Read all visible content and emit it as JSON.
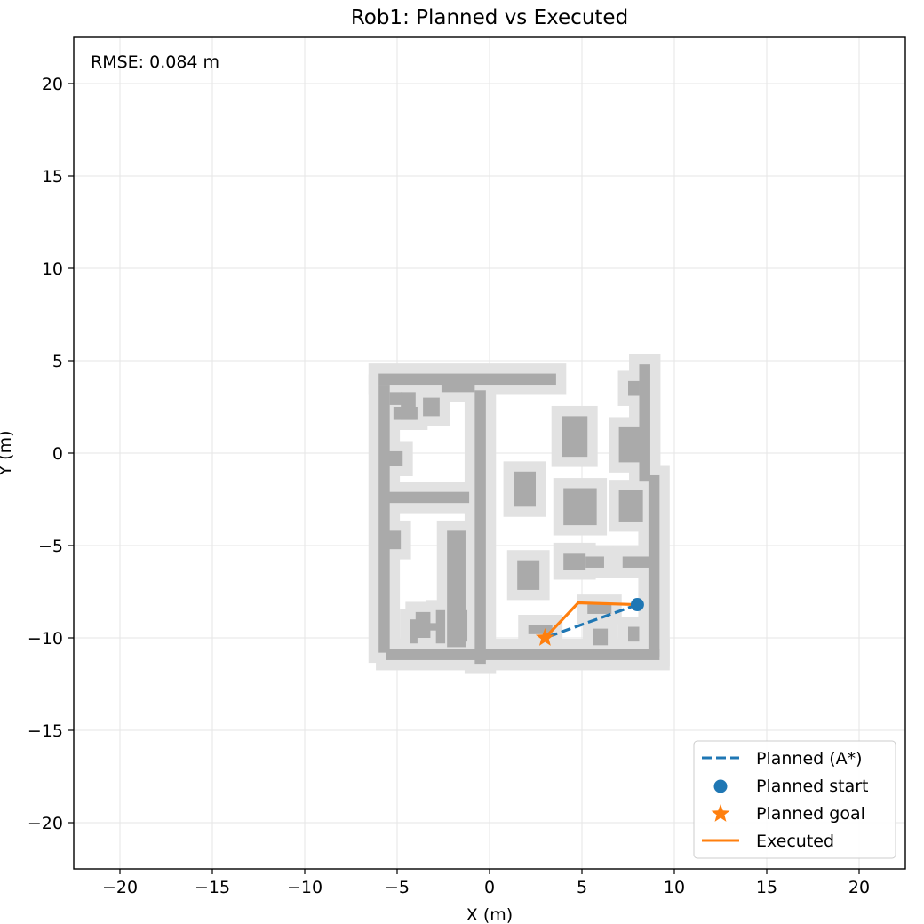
{
  "chart_data": {
    "type": "line",
    "title": "Rob1: Planned vs Executed",
    "xlabel": "X (m)",
    "ylabel": "Y (m)",
    "xlim": [
      -22.5,
      22.5
    ],
    "ylim": [
      -22.5,
      22.5
    ],
    "xticks": [
      -20,
      -15,
      -10,
      -5,
      0,
      5,
      10,
      15,
      20
    ],
    "yticks": [
      -20,
      -15,
      -10,
      -5,
      0,
      5,
      10,
      15,
      20
    ],
    "grid": true,
    "legend_position": "bottom-right",
    "annotation": "RMSE: 0.084 m",
    "series": [
      {
        "name": "Planned (A*)",
        "style": "dashed",
        "color": "#1f77b4",
        "x": [
          8.0,
          3.0
        ],
        "y": [
          -8.2,
          -10.0
        ]
      },
      {
        "name": "Planned start",
        "marker": "circle",
        "color": "#1f77b4",
        "x": [
          8.0
        ],
        "y": [
          -8.2
        ]
      },
      {
        "name": "Planned goal",
        "marker": "star",
        "color": "#ff7f0e",
        "x": [
          3.0
        ],
        "y": [
          -10.0
        ]
      },
      {
        "name": "Executed",
        "style": "solid",
        "color": "#ff7f0e",
        "x": [
          8.0,
          4.8,
          3.0
        ],
        "y": [
          -8.2,
          -8.1,
          -10.0
        ]
      }
    ],
    "occupancy_map": {
      "wall_color": "#aaaaaa",
      "inflation_color": "#e2e2e2",
      "obstacles": [
        [
          -6.0,
          3.7,
          9.6,
          0.6
        ],
        [
          -6.0,
          -10.8,
          0.6,
          14.5
        ],
        [
          -5.6,
          -11.2,
          14.8,
          0.6
        ],
        [
          8.6,
          -11.0,
          0.6,
          9.8
        ],
        [
          8.1,
          -1.5,
          0.6,
          6.3
        ],
        [
          -0.8,
          -11.4,
          0.6,
          14.8
        ],
        [
          -2.6,
          3.3,
          1.8,
          0.5
        ],
        [
          -2.3,
          -10.5,
          1.0,
          6.3
        ],
        [
          -5.6,
          -2.7,
          4.5,
          0.6
        ],
        [
          -5.2,
          1.8,
          1.3,
          0.7
        ],
        [
          -4.8,
          1.8,
          0.8,
          1.5
        ],
        [
          -3.6,
          2.0,
          0.9,
          1.0
        ],
        [
          -5.4,
          2.6,
          0.7,
          0.7
        ],
        [
          -5.5,
          -0.7,
          0.8,
          0.8
        ],
        [
          -5.5,
          -5.2,
          0.7,
          1.0
        ],
        [
          -4.3,
          -10.3,
          0.4,
          1.3
        ],
        [
          -4.0,
          -10.0,
          0.8,
          1.4
        ],
        [
          -2.9,
          -10.3,
          0.5,
          1.8
        ],
        [
          -1.9,
          -10.2,
          0.7,
          1.7
        ],
        [
          -3.4,
          -9.6,
          0.8,
          0.4
        ],
        [
          1.3,
          -2.9,
          1.2,
          1.9
        ],
        [
          3.9,
          -0.2,
          1.4,
          2.2
        ],
        [
          7.0,
          -0.5,
          1.3,
          1.9
        ],
        [
          7.5,
          3.1,
          0.6,
          0.8
        ],
        [
          4.0,
          -3.9,
          1.8,
          2.0
        ],
        [
          7.0,
          -3.7,
          1.3,
          1.7
        ],
        [
          1.5,
          -7.4,
          1.2,
          1.6
        ],
        [
          4.0,
          -6.3,
          1.2,
          0.9
        ],
        [
          5.2,
          -6.2,
          1.0,
          0.6
        ],
        [
          7.2,
          -6.2,
          1.7,
          0.6
        ],
        [
          5.3,
          -8.7,
          1.3,
          0.5
        ],
        [
          5.6,
          -10.4,
          0.8,
          0.9
        ],
        [
          7.5,
          -10.2,
          0.6,
          0.8
        ],
        [
          2.1,
          -9.8,
          1.3,
          0.5
        ]
      ]
    }
  }
}
